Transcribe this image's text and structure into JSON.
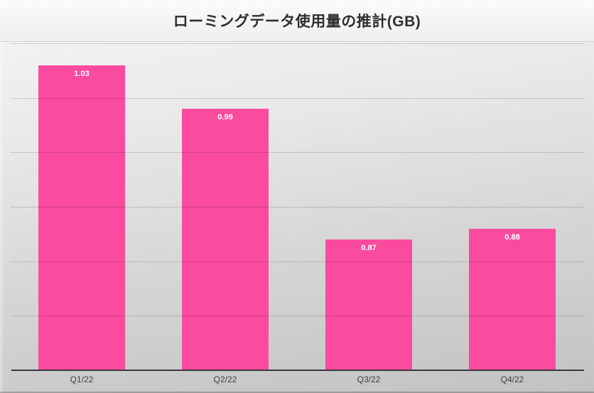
{
  "chart_data": {
    "type": "bar",
    "title": "ローミングデータ使用量の推計(GB)",
    "categories": [
      "Q1/22",
      "Q2/22",
      "Q3/22",
      "Q4/22"
    ],
    "values": [
      1.03,
      0.99,
      0.87,
      0.88
    ],
    "data_labels": [
      "1.03",
      "0.99",
      "0.87",
      "0.88"
    ],
    "xlabel": "",
    "ylabel": "",
    "ylim": [
      0.75,
      1.05
    ],
    "gridline_interval": 0.05,
    "grid": "horizontal",
    "y_tick_labels_visible": false,
    "legend_position": "none",
    "data_label_position": "inside-top"
  },
  "colors": {
    "bar_fill": "#fa4b9e",
    "title_text": "#2f2f2f",
    "axis_line": "#3a3a3a",
    "category_label_text": "#404040",
    "data_label_text": "#ffffff",
    "gridline": "rgba(0,0,0,0.15)",
    "background_top": "#f6f6f6",
    "background_bottom": "#c2c2c2",
    "title_band_border": "#d2d2d2"
  }
}
